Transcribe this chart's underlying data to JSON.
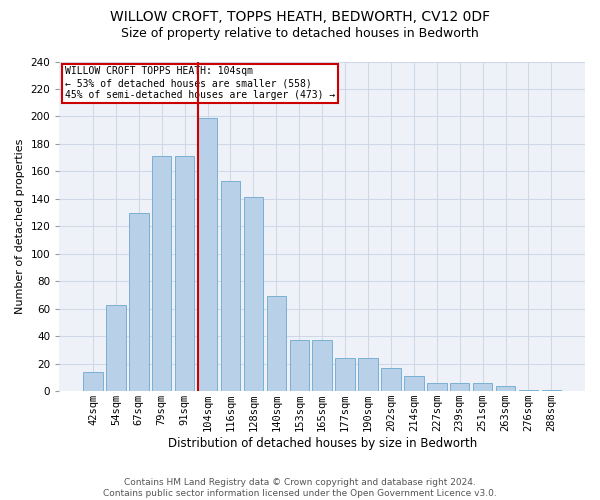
{
  "title": "WILLOW CROFT, TOPPS HEATH, BEDWORTH, CV12 0DF",
  "subtitle": "Size of property relative to detached houses in Bedworth",
  "xlabel": "Distribution of detached houses by size in Bedworth",
  "ylabel": "Number of detached properties",
  "footer_line1": "Contains HM Land Registry data © Crown copyright and database right 2024.",
  "footer_line2": "Contains public sector information licensed under the Open Government Licence v3.0.",
  "annotation_title": "WILLOW CROFT TOPPS HEATH: 104sqm",
  "annotation_line2": "← 53% of detached houses are smaller (558)",
  "annotation_line3": "45% of semi-detached houses are larger (473) →",
  "bar_categories": [
    "42sqm",
    "54sqm",
    "67sqm",
    "79sqm",
    "91sqm",
    "104sqm",
    "116sqm",
    "128sqm",
    "140sqm",
    "153sqm",
    "165sqm",
    "177sqm",
    "190sqm",
    "202sqm",
    "214sqm",
    "227sqm",
    "239sqm",
    "251sqm",
    "263sqm",
    "276sqm",
    "288sqm"
  ],
  "bar_values": [
    14,
    63,
    130,
    171,
    171,
    199,
    153,
    141,
    69,
    37,
    37,
    24,
    24,
    17,
    11,
    6,
    6,
    6,
    4,
    1,
    1
  ],
  "bar_color": "#b8d0e8",
  "bar_edgecolor": "#7ab0d4",
  "vline_color": "#cc0000",
  "grid_color": "#d0d8e8",
  "bg_color": "#eef2f8",
  "annotation_box_color": "#ffffff",
  "annotation_box_edgecolor": "#cc0000",
  "ylim": [
    0,
    240
  ],
  "yticks": [
    0,
    20,
    40,
    60,
    80,
    100,
    120,
    140,
    160,
    180,
    200,
    220,
    240
  ],
  "title_fontsize": 10,
  "subtitle_fontsize": 9,
  "ylabel_fontsize": 8,
  "xlabel_fontsize": 8.5,
  "footer_fontsize": 6.5,
  "tick_fontsize": 7.5
}
